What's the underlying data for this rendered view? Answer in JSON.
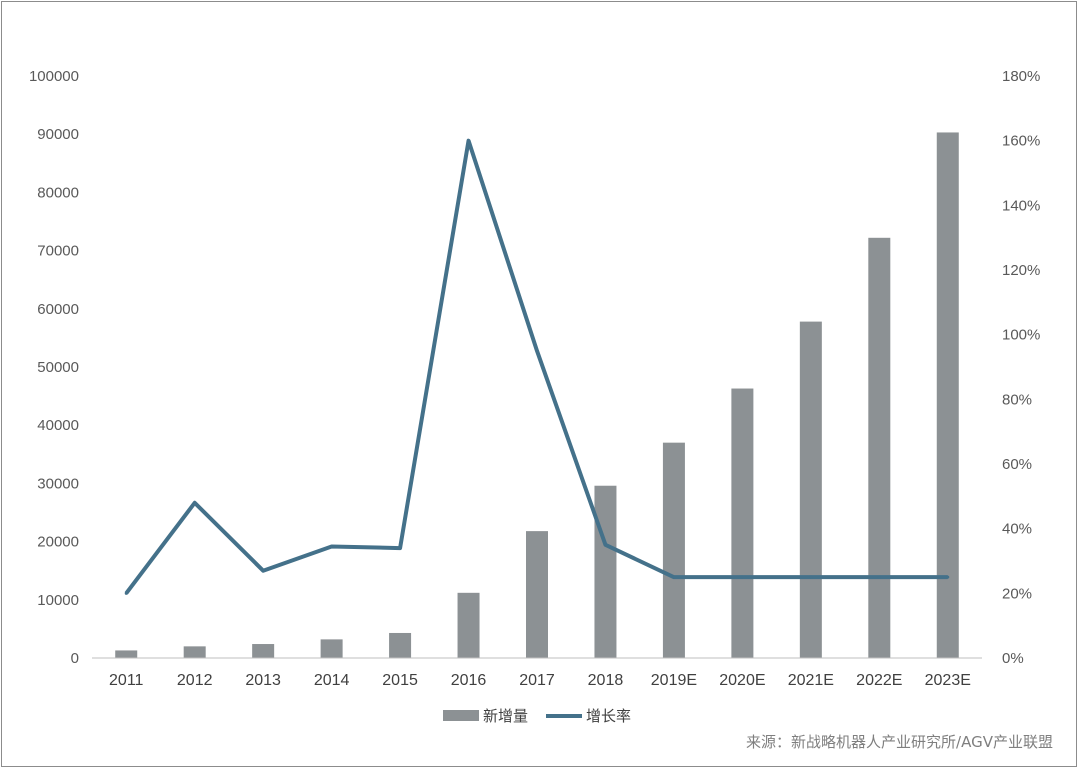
{
  "chart_data": {
    "type": "bar",
    "categories": [
      "2011",
      "2012",
      "2013",
      "2014",
      "2015",
      "2016",
      "2017",
      "2018",
      "2019E",
      "2020E",
      "2021E",
      "2022E",
      "2023E"
    ],
    "series": [
      {
        "name": "新增量",
        "type": "bar",
        "axis": "left",
        "color": "#8c9194",
        "values": [
          1300,
          2000,
          2400,
          3200,
          4300,
          11200,
          21800,
          29600,
          37000,
          46300,
          57800,
          72200,
          90300
        ]
      },
      {
        "name": "增长率",
        "type": "line",
        "axis": "right",
        "color": "#44718a",
        "values": [
          20,
          48,
          27,
          34.5,
          34,
          160,
          95,
          35,
          25,
          25,
          25,
          25,
          25
        ]
      }
    ],
    "y_left": {
      "min": 0,
      "max": 100000,
      "ticks": [
        "0",
        "10000",
        "20000",
        "30000",
        "40000",
        "50000",
        "60000",
        "70000",
        "80000",
        "90000",
        "100000"
      ]
    },
    "y_right": {
      "min": 0,
      "max": 180,
      "ticks": [
        "0%",
        "20%",
        "40%",
        "60%",
        "80%",
        "100%",
        "120%",
        "140%",
        "160%",
        "180%"
      ]
    },
    "grid": false,
    "legend": {
      "position": "bottom",
      "items": [
        "新增量",
        "增长率"
      ]
    },
    "source": "来源：新战略机器人产业研究所/AGV产业联盟"
  }
}
